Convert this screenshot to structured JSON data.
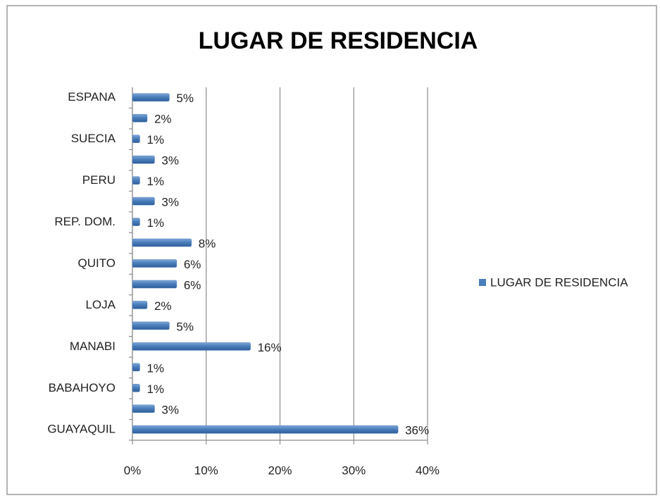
{
  "chart_data": {
    "type": "bar",
    "orientation": "horizontal",
    "title": "LUGAR DE RESIDENCIA",
    "categories": [
      "GUAYAQUIL",
      null,
      "BABAHOYO",
      null,
      "MANABI",
      null,
      "LOJA",
      null,
      "QUITO",
      null,
      "REP. DOM.",
      null,
      "PERU",
      null,
      "SUECIA",
      null,
      "ESPANA"
    ],
    "series": [
      {
        "name": "LUGAR DE RESIDENCIA",
        "color": "#4a7ebb",
        "values": [
          36,
          3,
          1,
          1,
          16,
          5,
          2,
          6,
          6,
          8,
          1,
          3,
          1,
          3,
          1,
          2,
          5
        ],
        "value_labels": [
          "36%",
          "3%",
          "1%",
          "1%",
          "16%",
          "5%",
          "2%",
          "6%",
          "6%",
          "8%",
          "1%",
          "3%",
          "1%",
          "3%",
          "1%",
          "2%",
          "5%"
        ]
      }
    ],
    "xlim": [
      0,
      40
    ],
    "xticks": [
      {
        "value": 0,
        "label": "0%"
      },
      {
        "value": 10,
        "label": "10%"
      },
      {
        "value": 20,
        "label": "20%"
      },
      {
        "value": 30,
        "label": "30%"
      },
      {
        "value": 40,
        "label": "40%"
      }
    ],
    "grid": true,
    "legend": "right"
  }
}
